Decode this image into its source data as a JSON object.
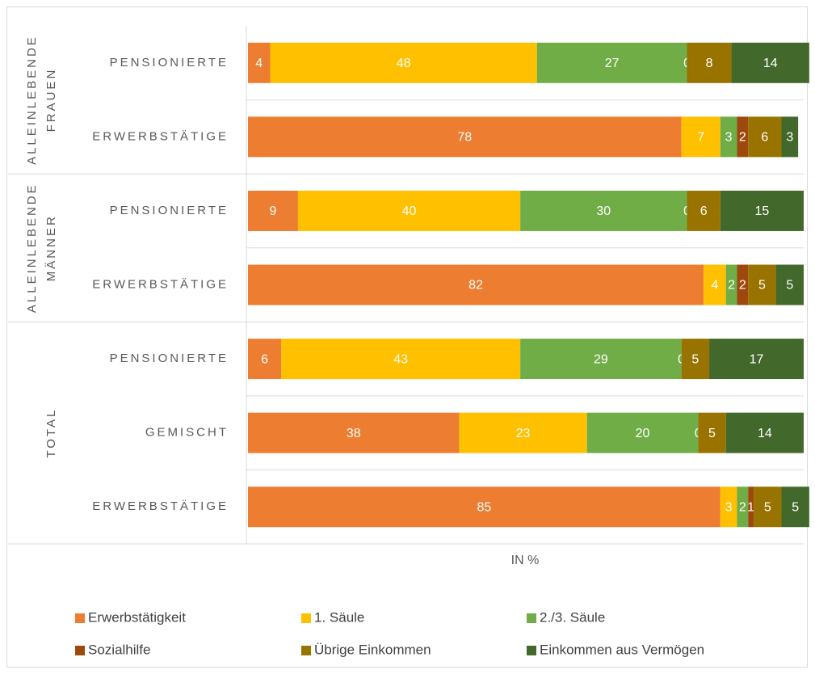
{
  "chart_data": {
    "type": "stacked-bar-horizontal",
    "x_axis_label": "IN %",
    "xlim": [
      0,
      100
    ],
    "groups": [
      {
        "label": [
          "ALLEINLEBENDE",
          "FRAUEN"
        ],
        "categories": [
          "PENSIONIERTE",
          "ERWERBSTÄTIGE"
        ]
      },
      {
        "label": [
          "ALLEINLEBENDE",
          "MÄNNER"
        ],
        "categories": [
          "PENSIONIERTE",
          "ERWERBSTÄTIGE"
        ]
      },
      {
        "label": [
          "TOTAL"
        ],
        "categories": [
          "PENSIONIERTE",
          "GEMISCHT",
          "ERWERBSTÄTIGE"
        ]
      }
    ],
    "series": [
      {
        "name": "Erwerbstätigkeit",
        "color": "#ed7d31",
        "values": [
          4,
          78,
          9,
          82,
          6,
          38,
          85
        ]
      },
      {
        "name": "1. Säule",
        "color": "#ffc000",
        "values": [
          48,
          7,
          40,
          4,
          43,
          23,
          3
        ]
      },
      {
        "name": "2./3. Säule",
        "color": "#70ad47",
        "values": [
          27,
          3,
          30,
          2,
          29,
          20,
          2
        ]
      },
      {
        "name": "Sozialhilfe",
        "color": "#9e480e",
        "values": [
          0,
          2,
          0,
          2,
          0,
          0,
          1
        ]
      },
      {
        "name": "Übrige Einkommen",
        "color": "#997300",
        "values": [
          8,
          6,
          6,
          5,
          5,
          5,
          5
        ]
      },
      {
        "name": "Einkommen aus Vermögen",
        "color": "#43682b",
        "values": [
          14,
          3,
          15,
          5,
          17,
          14,
          5
        ]
      }
    ],
    "legend": "bottom"
  }
}
